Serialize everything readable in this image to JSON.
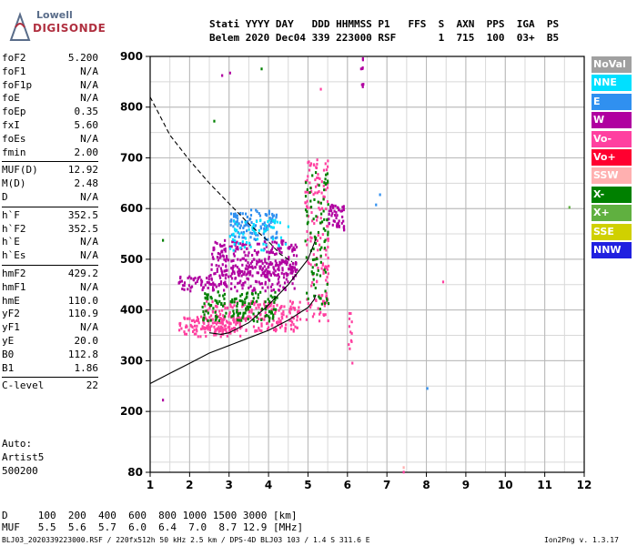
{
  "logo": {
    "line1": "Lowell",
    "line2": "DIGISONDE"
  },
  "header": {
    "row1": "Stati YYYY DAY   DDD HHMMSS P1   FFS  S  AXN  PPS  IGA  PS",
    "row2": "Belem 2020 Dec04 339 223000 RSF       1  715  100  03+  B5"
  },
  "params": [
    [
      {
        "k": "foF2",
        "v": "5.200"
      },
      {
        "k": "foF1",
        "v": "N/A"
      },
      {
        "k": "foF1p",
        "v": "N/A"
      },
      {
        "k": "foE",
        "v": "N/A"
      },
      {
        "k": "foEp",
        "v": "0.35"
      },
      {
        "k": "fxI",
        "v": "5.60"
      },
      {
        "k": "foEs",
        "v": "N/A"
      },
      {
        "k": "fmin",
        "v": "2.00"
      }
    ],
    [
      {
        "k": "MUF(D)",
        "v": "12.92"
      },
      {
        "k": "M(D)",
        "v": "2.48"
      },
      {
        "k": "D",
        "v": "N/A"
      }
    ],
    [
      {
        "k": "h`F",
        "v": "352.5"
      },
      {
        "k": "h`F2",
        "v": "352.5"
      },
      {
        "k": "h`E",
        "v": "N/A"
      },
      {
        "k": "h`Es",
        "v": "N/A"
      }
    ],
    [
      {
        "k": "hmF2",
        "v": "429.2"
      },
      {
        "k": "hmF1",
        "v": "N/A"
      },
      {
        "k": "hmE",
        "v": "110.0"
      },
      {
        "k": "yF2",
        "v": "110.9"
      },
      {
        "k": "yF1",
        "v": "N/A"
      },
      {
        "k": "yE",
        "v": "20.0"
      },
      {
        "k": "B0",
        "v": "112.8"
      },
      {
        "k": "B1",
        "v": "1.86"
      }
    ],
    [
      {
        "k": "C-level",
        "v": "22"
      }
    ]
  ],
  "auto": {
    "l1": "Auto:",
    "l2": "Artist5",
    "l3": "500200"
  },
  "legend": [
    {
      "label": "NoVal",
      "color": "#a0a0a0"
    },
    {
      "label": "NNE",
      "color": "#00e0ff"
    },
    {
      "label": "E",
      "color": "#3090f0"
    },
    {
      "label": "W",
      "color": "#b000a0"
    },
    {
      "label": "Vo-",
      "color": "#ff40a0"
    },
    {
      "label": "Vo+",
      "color": "#ff0030"
    },
    {
      "label": "SSW",
      "color": "#ffb0b0"
    },
    {
      "label": "X-",
      "color": "#008000"
    },
    {
      "label": "X+",
      "color": "#60b040"
    },
    {
      "label": "SSE",
      "color": "#d0d000"
    },
    {
      "label": "NNW",
      "color": "#2020e0"
    }
  ],
  "bottom": {
    "d_row": "D     100  200  400  600  800 1000 1500 3000 [km]",
    "muf_row": "MUF   5.5  5.6  5.7  6.0  6.4  7.0  8.7 12.9 [MHz]"
  },
  "footer": {
    "left": "BLJ03_2020339223000.RSF / 220fx512h 50 kHz 2.5 km / DPS-4D BLJ03 103 / 1.4 S 311.6 E",
    "right": "Ion2Png v. 1.3.17"
  },
  "chart_data": {
    "type": "scatter",
    "xlim": [
      1,
      12
    ],
    "ylim": [
      80,
      900
    ],
    "x_ticks": [
      1,
      2,
      3,
      4,
      5,
      6,
      7,
      8,
      9,
      10,
      11,
      12
    ],
    "y_ticks": [
      80,
      200,
      300,
      400,
      500,
      600,
      700,
      800,
      900
    ],
    "x_tick_labels": [
      "1",
      "2",
      "3",
      "4",
      "5",
      "6",
      "7",
      "8",
      "9",
      "10",
      "11",
      "12"
    ],
    "y_tick_labels": [
      "80",
      "200",
      "300",
      "400",
      "500",
      "600",
      "700",
      "800",
      "900"
    ],
    "grid": true,
    "curves": [
      {
        "style": "solid",
        "x": [
          1.0,
          1.5,
          2.0,
          2.5,
          3.0,
          3.5,
          4.0,
          4.5,
          4.8,
          5.0,
          5.15,
          5.2
        ],
        "y": [
          255,
          275,
          295,
          315,
          330,
          345,
          360,
          380,
          395,
          405,
          420,
          430
        ]
      },
      {
        "style": "solid",
        "x": [
          2.5,
          2.8,
          3.0,
          3.5,
          4.0,
          4.5,
          5.0,
          5.2
        ],
        "y": [
          355,
          352,
          355,
          375,
          410,
          450,
          500,
          540
        ]
      },
      {
        "style": "dashed",
        "x": [
          1.0,
          1.2,
          1.5,
          2.0,
          2.5,
          3.0,
          3.5,
          4.0,
          4.3,
          4.6
        ],
        "y": [
          820,
          790,
          745,
          695,
          650,
          610,
          570,
          535,
          510,
          495
        ]
      }
    ],
    "clusters": [
      {
        "x": [
          1.7,
          3.3
        ],
        "y": [
          350,
          390
        ],
        "color": "#ff40a0",
        "n": 120
      },
      {
        "x": [
          2.3,
          4.8
        ],
        "y": [
          360,
          420
        ],
        "color": "#ff40a0",
        "n": 220
      },
      {
        "x": [
          2.3,
          4.2
        ],
        "y": [
          380,
          440
        ],
        "color": "#008000",
        "n": 140
      },
      {
        "x": [
          1.7,
          3.0
        ],
        "y": [
          440,
          470
        ],
        "color": "#b000a0",
        "n": 70
      },
      {
        "x": [
          2.5,
          4.7
        ],
        "y": [
          470,
          540
        ],
        "color": "#b000a0",
        "n": 260
      },
      {
        "x": [
          3.0,
          4.7
        ],
        "y": [
          440,
          490
        ],
        "color": "#b000a0",
        "n": 110
      },
      {
        "x": [
          3.0,
          4.2
        ],
        "y": [
          540,
          600
        ],
        "color": "#3090f0",
        "n": 110
      },
      {
        "x": [
          3.0,
          4.5
        ],
        "y": [
          520,
          580
        ],
        "color": "#00e0ff",
        "n": 60
      },
      {
        "x": [
          4.9,
          5.5
        ],
        "y": [
          380,
          700
        ],
        "color": "#ff40a0",
        "n": 150
      },
      {
        "x": [
          4.9,
          5.5
        ],
        "y": [
          400,
          680
        ],
        "color": "#008000",
        "n": 90
      },
      {
        "x": [
          5.5,
          5.9
        ],
        "y": [
          560,
          610
        ],
        "color": "#b000a0",
        "n": 50
      },
      {
        "x": [
          6.0,
          6.1
        ],
        "y": [
          280,
          400
        ],
        "color": "#ff40a0",
        "n": 12
      },
      {
        "x": [
          6.3,
          6.4
        ],
        "y": [
          840,
          900
        ],
        "color": "#b000a0",
        "n": 8
      }
    ],
    "points": [
      {
        "x": 1.3,
        "y": 225,
        "color": "#b000a0"
      },
      {
        "x": 8.0,
        "y": 248,
        "color": "#3090f0"
      },
      {
        "x": 8.4,
        "y": 458,
        "color": "#ff40a0"
      },
      {
        "x": 7.4,
        "y": 92,
        "color": "#ffb0b0"
      },
      {
        "x": 7.4,
        "y": 83,
        "color": "#ff40a0"
      },
      {
        "x": 11.6,
        "y": 605,
        "color": "#60b040"
      },
      {
        "x": 6.7,
        "y": 610,
        "color": "#3090f0"
      },
      {
        "x": 6.8,
        "y": 630,
        "color": "#3090f0"
      },
      {
        "x": 1.3,
        "y": 540,
        "color": "#008000"
      },
      {
        "x": 2.6,
        "y": 775,
        "color": "#008000"
      },
      {
        "x": 2.8,
        "y": 865,
        "color": "#b000a0"
      },
      {
        "x": 3.0,
        "y": 870,
        "color": "#b000a0"
      },
      {
        "x": 3.8,
        "y": 878,
        "color": "#008000"
      },
      {
        "x": 5.3,
        "y": 838,
        "color": "#ff40a0"
      }
    ]
  }
}
